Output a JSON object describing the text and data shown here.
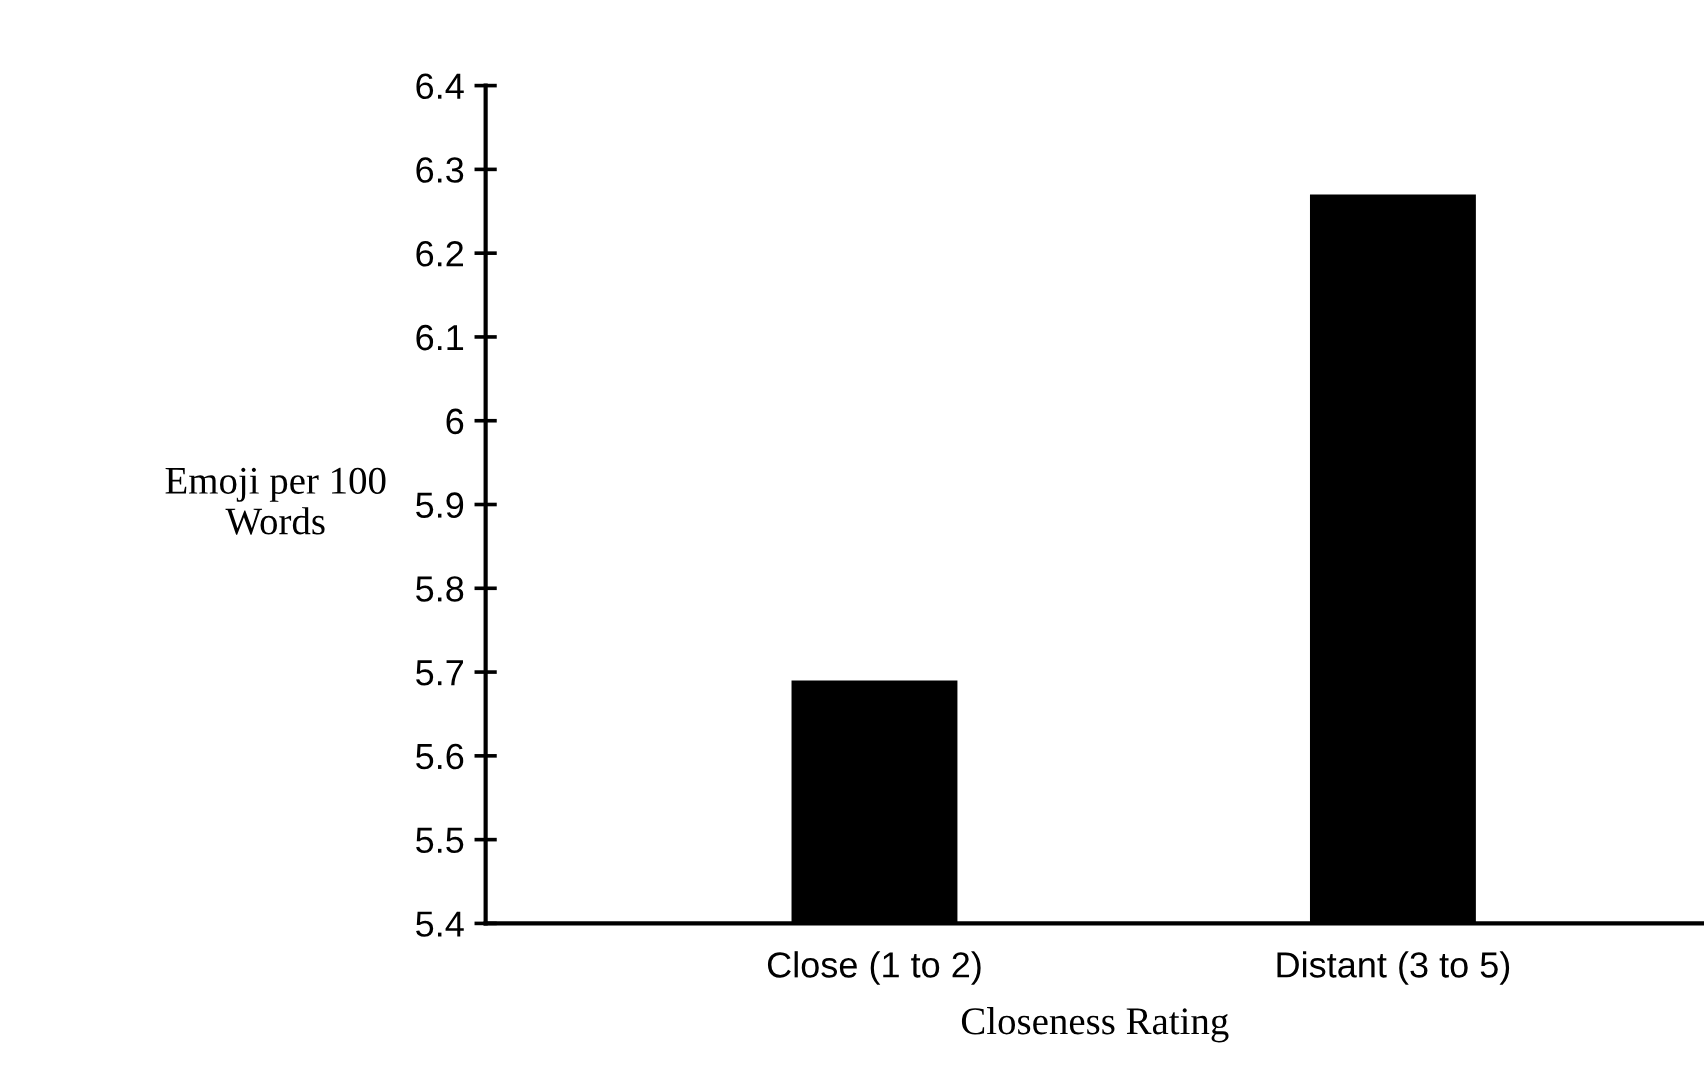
{
  "chart_data": {
    "type": "bar",
    "xlabel": "Closeness Rating",
    "ylabel": "Emoji per 100\nWords",
    "categories": [
      "Close (1 to 2)",
      "Distant (3 to 5)"
    ],
    "values": [
      5.69,
      6.27
    ],
    "color": "#000000",
    "ylim": [
      5.4,
      6.4
    ],
    "yticks": [
      5.4,
      5.5,
      5.6,
      5.7,
      5.8,
      5.9,
      6,
      6.1,
      6.2,
      6.3,
      6.4
    ],
    "grid": false
  }
}
